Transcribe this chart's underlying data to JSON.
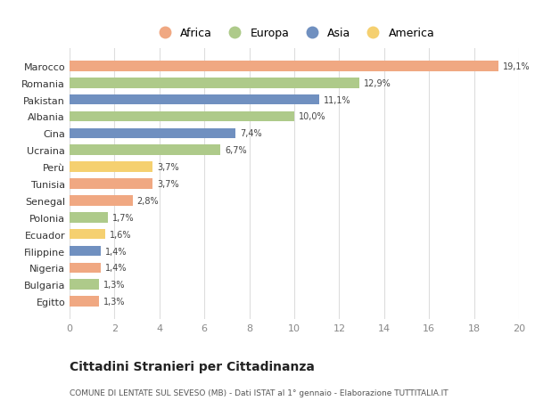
{
  "countries": [
    "Marocco",
    "Romania",
    "Pakistan",
    "Albania",
    "Cina",
    "Ucraina",
    "Perù",
    "Tunisia",
    "Senegal",
    "Polonia",
    "Ecuador",
    "Filippine",
    "Nigeria",
    "Bulgaria",
    "Egitto"
  ],
  "values": [
    19.1,
    12.9,
    11.1,
    10.0,
    7.4,
    6.7,
    3.7,
    3.7,
    2.8,
    1.7,
    1.6,
    1.4,
    1.4,
    1.3,
    1.3
  ],
  "labels": [
    "19,1%",
    "12,9%",
    "11,1%",
    "10,0%",
    "7,4%",
    "6,7%",
    "3,7%",
    "3,7%",
    "2,8%",
    "1,7%",
    "1,6%",
    "1,4%",
    "1,4%",
    "1,3%",
    "1,3%"
  ],
  "continents": [
    "Africa",
    "Europa",
    "Asia",
    "Europa",
    "Asia",
    "Europa",
    "America",
    "Africa",
    "Africa",
    "Europa",
    "America",
    "Asia",
    "Africa",
    "Europa",
    "Africa"
  ],
  "continent_colors": {
    "Africa": "#F0A882",
    "Europa": "#AECA8A",
    "Asia": "#7090C0",
    "America": "#F5D070"
  },
  "legend_order": [
    "Africa",
    "Europa",
    "Asia",
    "America"
  ],
  "title": "Cittadini Stranieri per Cittadinanza",
  "subtitle": "COMUNE DI LENTATE SUL SEVESO (MB) - Dati ISTAT al 1° gennaio - Elaborazione TUTTITALIA.IT",
  "xlim": [
    0,
    20
  ],
  "xticks": [
    0,
    2,
    4,
    6,
    8,
    10,
    12,
    14,
    16,
    18,
    20
  ],
  "background_color": "#ffffff",
  "grid_color": "#dddddd",
  "bar_height": 0.62
}
